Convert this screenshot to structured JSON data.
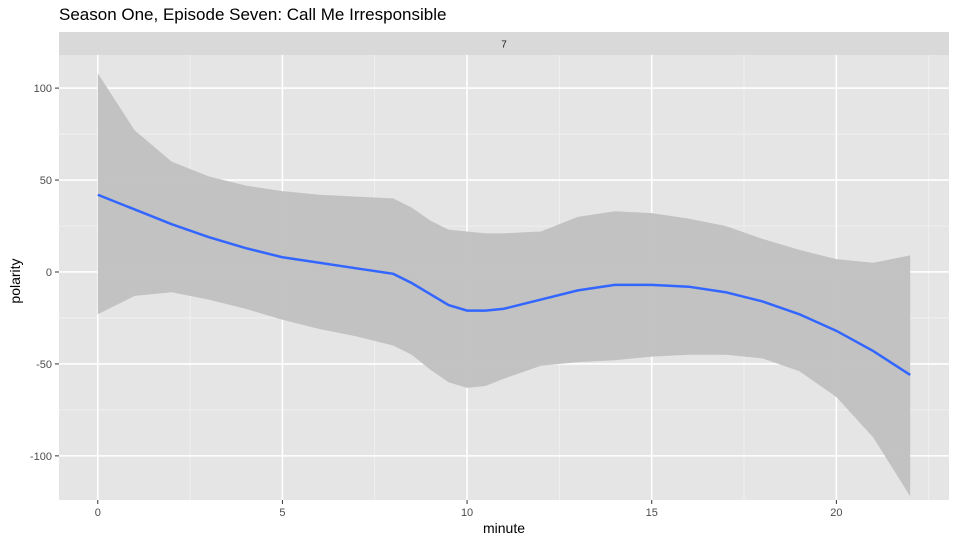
{
  "chart_data": {
    "type": "line",
    "title": "Season One, Episode Seven: Call Me Irresponsible",
    "facet_label": "7",
    "xlabel": "minute",
    "ylabel": "polarity",
    "xlim": [
      -1.05,
      23.05
    ],
    "ylim": [
      -124,
      118
    ],
    "x_ticks": [
      0,
      5,
      10,
      15,
      20
    ],
    "y_ticks": [
      100,
      50,
      0,
      -50,
      -100
    ],
    "x_tick_labels": [
      "0",
      "5",
      "10",
      "15",
      "20"
    ],
    "y_tick_labels": [
      "100",
      "50",
      "0",
      "-50",
      "-100"
    ],
    "grid": true,
    "series": [
      {
        "color": "#3366ff",
        "x": [
          0,
          1,
          2,
          3,
          4,
          5,
          6,
          7,
          8,
          8.5,
          9,
          9.5,
          10,
          10.5,
          11,
          12,
          13,
          14,
          15,
          16,
          17,
          18,
          19,
          20,
          21,
          22
        ],
        "y": [
          42,
          34,
          26,
          19,
          13,
          8,
          5,
          2,
          -1,
          -6,
          -12,
          -18,
          -21,
          -21,
          -20,
          -15,
          -10,
          -7,
          -7,
          -8,
          -11,
          -16,
          -23,
          -32,
          -43,
          -56
        ],
        "ci_upper": [
          108,
          77,
          60,
          52,
          47,
          44,
          42,
          41,
          40,
          35,
          28,
          23,
          22,
          21,
          21,
          22,
          30,
          33,
          32,
          29,
          25,
          18,
          12,
          7,
          5,
          9
        ],
        "ci_lower": [
          -23,
          -13,
          -11,
          -15,
          -20,
          -26,
          -31,
          -35,
          -40,
          -45,
          -53,
          -60,
          -63,
          -62,
          -58,
          -51,
          -49,
          -48,
          -46,
          -45,
          -45,
          -47,
          -54,
          -68,
          -90,
          -122
        ]
      }
    ]
  },
  "colors": {
    "panel_background": "#e5e5e5",
    "strip_background": "#d9d9d9",
    "grid_major": "#ffffff",
    "ribbon": "#c0c0c0",
    "line": "#3366ff",
    "axis_text": "#4d4d4d"
  }
}
